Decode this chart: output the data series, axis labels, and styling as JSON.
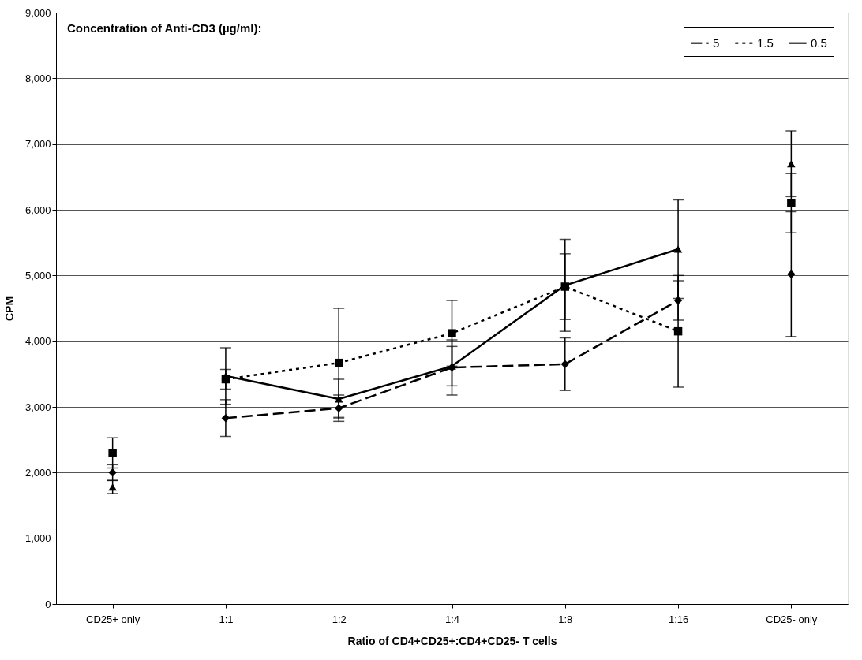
{
  "chart_data": {
    "type": "line",
    "xlabel": "Ratio of CD4+CD25+:CD4+CD25- T cells",
    "ylabel": "CPM",
    "legend_title": "Concentration of Anti-CD3 (µg/ml):",
    "categories": [
      "CD25+ only",
      "1:1",
      "1:2",
      "1:4",
      "1:8",
      "1:16",
      "CD25- only"
    ],
    "ylim": [
      0,
      9000
    ],
    "yticks": [
      {
        "value": 0,
        "label": "0"
      },
      {
        "value": 1000,
        "label": "1,000"
      },
      {
        "value": 2000,
        "label": "2,000"
      },
      {
        "value": 3000,
        "label": "3,000"
      },
      {
        "value": 4000,
        "label": "4,000"
      },
      {
        "value": 5000,
        "label": "5,000"
      },
      {
        "value": 6000,
        "label": "6,000"
      },
      {
        "value": 7000,
        "label": "7,000"
      },
      {
        "value": 8000,
        "label": "8,000"
      },
      {
        "value": 9000,
        "label": "9,000"
      }
    ],
    "grid": "y",
    "legend": "top right",
    "series": [
      {
        "name": "5",
        "type": "line",
        "color": "#000000",
        "marker": "diamond",
        "line_style": "dashed",
        "values": [
          null,
          2830,
          2980,
          3600,
          3650,
          4620,
          null
        ],
        "errors": [
          null,
          280,
          200,
          420,
          400,
          300,
          null
        ]
      },
      {
        "name": "1.5",
        "type": "line",
        "color": "#000000",
        "marker": "square",
        "line_style": "dotted",
        "values": [
          null,
          3420,
          3670,
          4120,
          4830,
          4150,
          null
        ],
        "errors": [
          null,
          150,
          830,
          500,
          500,
          850,
          null
        ]
      },
      {
        "name": "0.5",
        "type": "line",
        "color": "#000000",
        "marker": "triangle",
        "line_style": "solid",
        "values": [
          null,
          3470,
          3120,
          3620,
          4850,
          5400,
          null
        ],
        "errors": [
          null,
          430,
          300,
          300,
          700,
          750,
          null
        ]
      },
      {
        "type": "scatter",
        "color": "#000000",
        "marker": "diamond",
        "values": [
          2000,
          null,
          null,
          null,
          null,
          null,
          5020
        ],
        "errors": [
          120,
          null,
          null,
          null,
          null,
          null,
          950
        ]
      },
      {
        "type": "scatter",
        "color": "#000000",
        "marker": "square",
        "values": [
          2300,
          null,
          null,
          null,
          null,
          null,
          6100
        ],
        "errors": [
          230,
          null,
          null,
          null,
          null,
          null,
          450
        ]
      },
      {
        "type": "scatter",
        "color": "#000000",
        "marker": "triangle",
        "values": [
          1780,
          null,
          null,
          null,
          null,
          null,
          6700
        ],
        "errors": [
          100,
          null,
          null,
          null,
          null,
          null,
          500
        ]
      }
    ]
  }
}
